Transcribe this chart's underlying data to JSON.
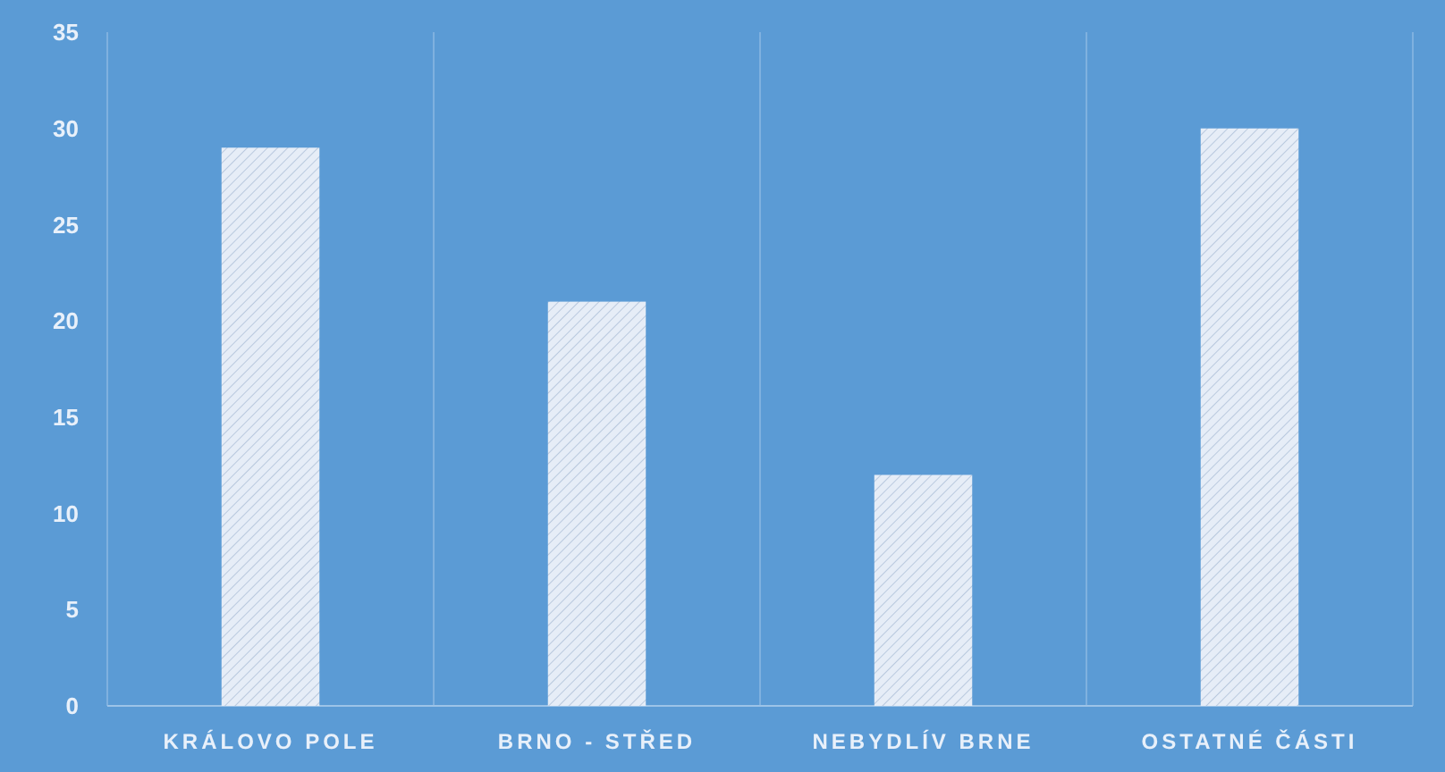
{
  "chart_data": {
    "type": "bar",
    "categories": [
      "KRÁLOVO POLE",
      "BRNO - STŘED",
      "NEBYDLÍV BRNE",
      "OSTATNÉ ČÁSTI"
    ],
    "values": [
      29,
      21,
      12,
      30
    ],
    "color": "#e6edf7",
    "ylim": [
      0,
      35
    ],
    "yticks": [
      0,
      5,
      10,
      15,
      20,
      25,
      30,
      35
    ],
    "grid": "x"
  }
}
